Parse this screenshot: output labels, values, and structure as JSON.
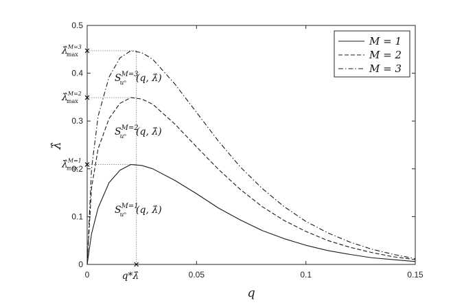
{
  "chart_data": {
    "type": "line",
    "xlabel": "q",
    "ylabel": "λ̂",
    "xlim": [
      0,
      0.15
    ],
    "ylim": [
      0,
      0.5
    ],
    "xticks": [
      0,
      0.05,
      0.1,
      0.15
    ],
    "xtick_labels": [
      "0",
      "0.05",
      "0.1",
      "0.15"
    ],
    "yticks": [
      0,
      0.1,
      0.2,
      0.3,
      0.4,
      0.5
    ],
    "ytick_labels": [
      "0",
      "0.1",
      "0.2",
      "0.3",
      "0.4",
      "0.5"
    ],
    "grid": false,
    "legend_position": "top-right",
    "series": [
      {
        "name": "M = 1",
        "style": "solid",
        "x": [
          0,
          0.002,
          0.005,
          0.01,
          0.015,
          0.02,
          0.025,
          0.03,
          0.04,
          0.05,
          0.06,
          0.07,
          0.08,
          0.09,
          0.1,
          0.11,
          0.12,
          0.13,
          0.14,
          0.15
        ],
        "y": [
          0,
          0.064,
          0.118,
          0.171,
          0.197,
          0.209,
          0.207,
          0.2,
          0.176,
          0.148,
          0.118,
          0.093,
          0.071,
          0.054,
          0.04,
          0.029,
          0.021,
          0.014,
          0.01,
          0.006
        ]
      },
      {
        "name": "M = 2",
        "style": "dashed",
        "x": [
          0,
          0.002,
          0.005,
          0.01,
          0.015,
          0.02,
          0.025,
          0.03,
          0.04,
          0.05,
          0.06,
          0.07,
          0.08,
          0.09,
          0.1,
          0.11,
          0.12,
          0.13,
          0.14,
          0.15
        ],
        "y": [
          0,
          0.16,
          0.242,
          0.305,
          0.337,
          0.349,
          0.346,
          0.335,
          0.294,
          0.246,
          0.199,
          0.157,
          0.121,
          0.092,
          0.069,
          0.05,
          0.036,
          0.025,
          0.016,
          0.01
        ]
      },
      {
        "name": "M = 3",
        "style": "dashdot",
        "x": [
          0,
          0.002,
          0.005,
          0.01,
          0.015,
          0.02,
          0.025,
          0.03,
          0.04,
          0.05,
          0.06,
          0.07,
          0.08,
          0.09,
          0.1,
          0.11,
          0.12,
          0.13,
          0.14,
          0.15
        ],
        "y": [
          0,
          0.2,
          0.31,
          0.392,
          0.432,
          0.447,
          0.443,
          0.429,
          0.378,
          0.318,
          0.258,
          0.204,
          0.159,
          0.121,
          0.09,
          0.066,
          0.047,
          0.032,
          0.021,
          0.012
        ]
      }
    ],
    "reference": {
      "q_star": 0.0225,
      "lambda_max": [
        0.209,
        0.349,
        0.447
      ]
    },
    "annotations": {
      "q_star_label": "q*λ̂",
      "lmax_base": "λ̂",
      "lmax_sub": "max",
      "lmax_sup": [
        "M=1",
        "M=2",
        "M=3"
      ],
      "region_base": "S",
      "region_sub": "uⁿ",
      "region_sup": [
        "M=1",
        "M=2",
        "M=3"
      ],
      "region_args": "(q, λ̂)"
    }
  }
}
